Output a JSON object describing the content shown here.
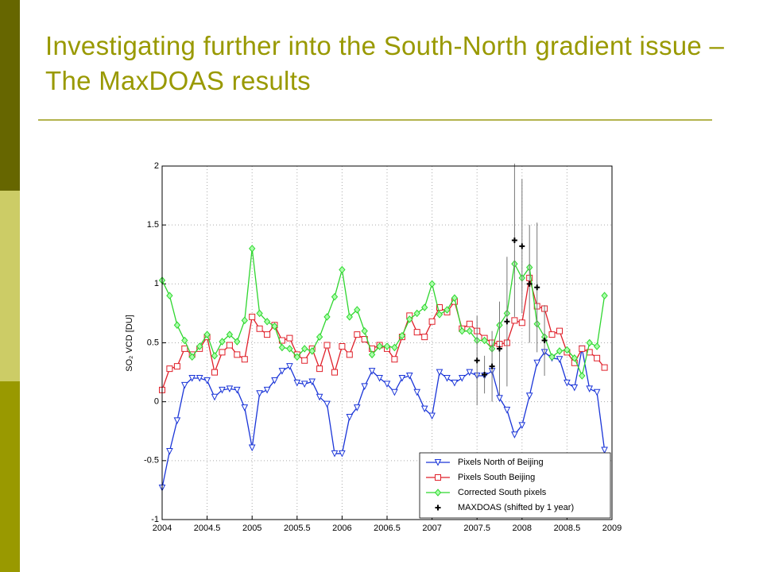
{
  "title": "Investigating further into the South-North gradient issue – The MaxDOAS results",
  "chart_data": {
    "type": "line",
    "ylabel": "SO₂ VCD [DU]",
    "xlim": [
      2004,
      2009
    ],
    "ylim": [
      -1,
      2
    ],
    "xticks": [
      2004,
      2004.5,
      2005,
      2005.5,
      2006,
      2006.5,
      2007,
      2007.5,
      2008,
      2008.5,
      2009
    ],
    "yticks": [
      -1,
      -0.5,
      0,
      0.5,
      1,
      1.5,
      2
    ],
    "grid": true,
    "legend": "lower right",
    "x": [
      2004,
      2004.083,
      2004.167,
      2004.25,
      2004.333,
      2004.417,
      2004.5,
      2004.583,
      2004.667,
      2004.75,
      2004.833,
      2004.917,
      2005,
      2005.083,
      2005.167,
      2005.25,
      2005.333,
      2005.417,
      2005.5,
      2005.583,
      2005.667,
      2005.75,
      2005.833,
      2005.917,
      2006,
      2006.083,
      2006.167,
      2006.25,
      2006.333,
      2006.417,
      2006.5,
      2006.583,
      2006.667,
      2006.75,
      2006.833,
      2006.917,
      2007,
      2007.083,
      2007.167,
      2007.25,
      2007.333,
      2007.417,
      2007.5,
      2007.583,
      2007.667,
      2007.75,
      2007.833,
      2007.917,
      2008,
      2008.083,
      2008.167,
      2008.25,
      2008.333,
      2008.417,
      2008.5,
      2008.583,
      2008.667,
      2008.75,
      2008.833,
      2008.917
    ],
    "series": [
      {
        "name": "Pixels North of Beijing",
        "color": "#1a35d8",
        "marker": "triangle-down",
        "values": [
          -0.73,
          -0.42,
          -0.16,
          0.14,
          0.2,
          0.2,
          0.18,
          0.04,
          0.1,
          0.11,
          0.1,
          -0.05,
          -0.39,
          0.07,
          0.1,
          0.18,
          0.26,
          0.3,
          0.16,
          0.15,
          0.17,
          0.04,
          -0.02,
          -0.44,
          -0.44,
          -0.13,
          -0.05,
          0.13,
          0.26,
          0.2,
          0.15,
          0.08,
          0.2,
          0.22,
          0.08,
          -0.06,
          -0.12,
          0.25,
          0.2,
          0.16,
          0.2,
          0.25,
          0.22,
          0.22,
          0.26,
          0.03,
          -0.07,
          -0.28,
          -0.2,
          0.05,
          0.33,
          0.42,
          0.37,
          0.36,
          0.16,
          0.12,
          0.45,
          0.11,
          0.08,
          -0.41
        ]
      },
      {
        "name": "Pixels South Beijing",
        "color": "#e0202a",
        "marker": "square",
        "values": [
          0.1,
          0.28,
          0.3,
          0.45,
          0.4,
          0.45,
          0.55,
          0.25,
          0.42,
          0.48,
          0.4,
          0.36,
          0.72,
          0.62,
          0.57,
          0.65,
          0.52,
          0.54,
          0.4,
          0.35,
          0.45,
          0.28,
          0.48,
          0.25,
          0.47,
          0.4,
          0.57,
          0.53,
          0.45,
          0.48,
          0.45,
          0.36,
          0.55,
          0.73,
          0.59,
          0.55,
          0.68,
          0.8,
          0.76,
          0.85,
          0.62,
          0.66,
          0.6,
          0.54,
          0.5,
          0.49,
          0.5,
          0.69,
          0.67,
          1.05,
          0.81,
          0.79,
          0.57,
          0.6,
          0.42,
          0.33,
          0.45,
          0.42,
          0.37,
          0.29
        ]
      },
      {
        "name": "Corrected South pixels",
        "color": "#2fd62f",
        "marker": "diamond",
        "values": [
          1.03,
          0.9,
          0.65,
          0.52,
          0.38,
          0.47,
          0.57,
          0.39,
          0.51,
          0.57,
          0.51,
          0.69,
          1.3,
          0.75,
          0.68,
          0.64,
          0.46,
          0.45,
          0.38,
          0.45,
          0.43,
          0.55,
          0.72,
          0.89,
          1.12,
          0.72,
          0.78,
          0.6,
          0.4,
          0.47,
          0.47,
          0.46,
          0.56,
          0.7,
          0.75,
          0.8,
          1.0,
          0.74,
          0.78,
          0.88,
          0.6,
          0.6,
          0.52,
          0.52,
          0.45,
          0.65,
          0.75,
          1.17,
          1.05,
          1.14,
          0.66,
          0.55,
          0.38,
          0.43,
          0.44,
          0.37,
          0.22,
          0.5,
          0.47,
          0.9
        ]
      },
      {
        "name": "MAXDOAS (shifted by 1 year)",
        "color": "#000000",
        "marker": "plus",
        "error_color": "#777777",
        "x": [
          2007.5,
          2007.583,
          2007.667,
          2007.75,
          2007.833,
          2007.917,
          2008,
          2008.083,
          2008.167,
          2008.25
        ],
        "values": [
          0.35,
          0.23,
          0.3,
          0.45,
          0.68,
          1.37,
          1.32,
          1.0,
          0.97,
          0.52
        ],
        "errors": [
          0.38,
          0.16,
          0.3,
          0.4,
          0.55,
          0.65,
          0.57,
          0.5,
          0.55,
          0.3
        ]
      }
    ]
  }
}
